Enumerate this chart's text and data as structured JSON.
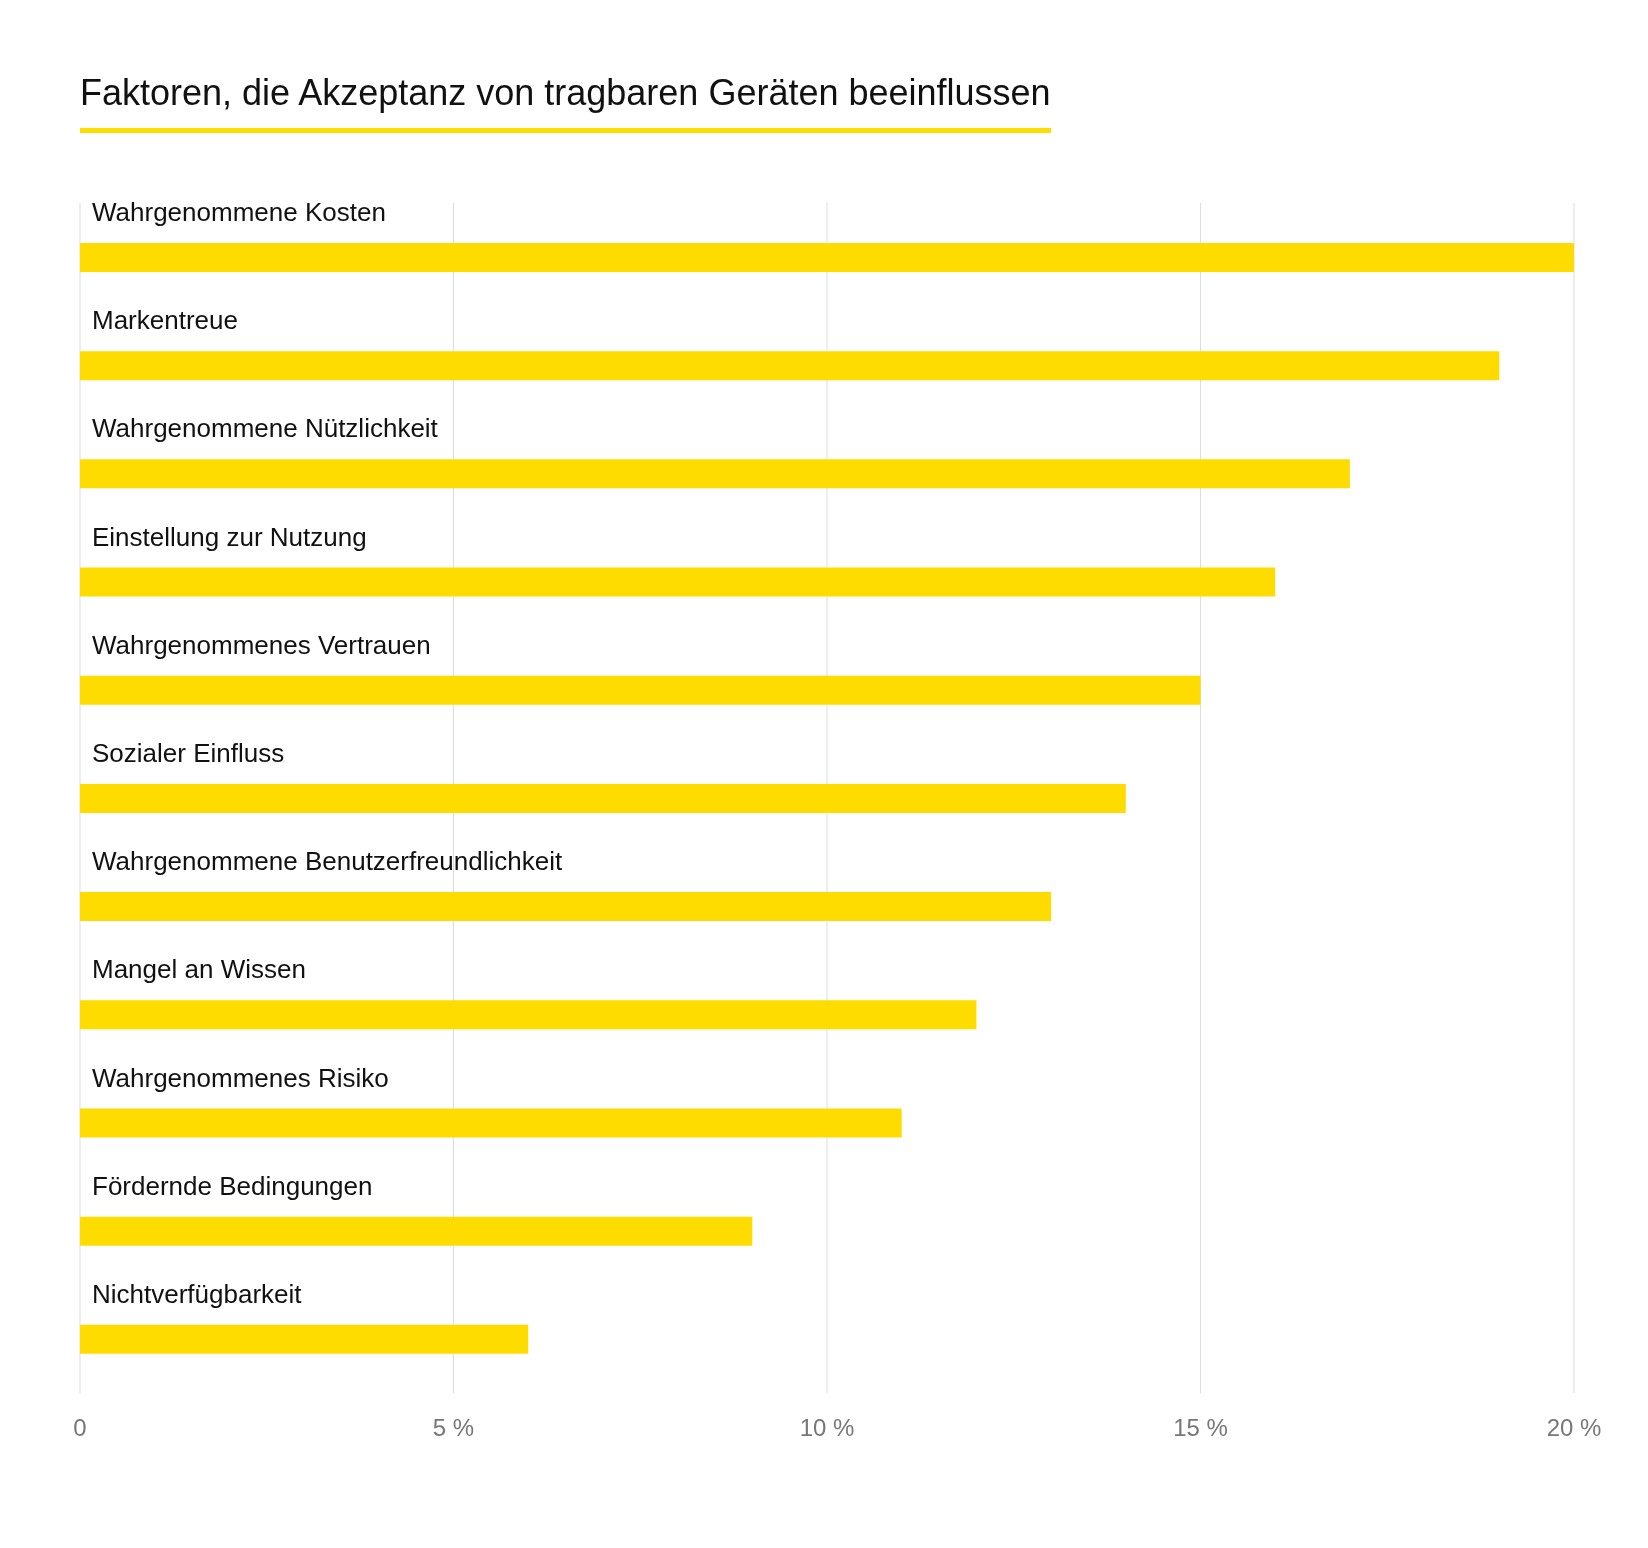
{
  "chart_data": {
    "type": "bar",
    "orientation": "horizontal",
    "title": "Faktoren, die Akzeptanz von tragbaren Geräten beeinflussen",
    "categories": [
      "Wahrgenommene Kosten",
      "Markentreue",
      "Wahrgenommene Nützlichkeit",
      "Einstellung zur Nutzung",
      "Wahrgenommenes Vertrauen",
      "Sozialer Einfluss",
      "Wahrgenommene Benutzerfreundlichkeit",
      "Mangel an Wissen",
      "Wahrgenommenes Risiko",
      "Fördernde Bedingungen",
      "Nichtverfügbarkeit"
    ],
    "values": [
      20,
      19,
      17,
      16,
      15,
      14,
      13,
      12,
      11,
      9,
      6
    ],
    "color": "#ffdc00",
    "xlim": [
      0,
      20
    ],
    "xticks": [
      0,
      {
        "value": 5,
        "label": "5 %"
      },
      {
        "value": 10,
        "label": "10 %"
      },
      {
        "value": 15,
        "label": "15 %"
      },
      {
        "value": 20,
        "label": "20 %"
      }
    ],
    "grid": "x",
    "legend": false
  }
}
